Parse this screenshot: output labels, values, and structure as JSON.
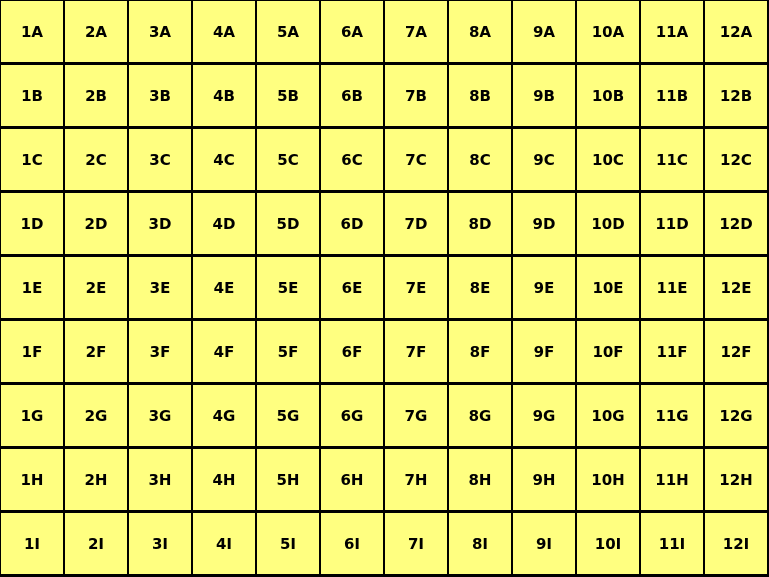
{
  "grid": {
    "columns": [
      "1",
      "2",
      "3",
      "4",
      "5",
      "6",
      "7",
      "8",
      "9",
      "10",
      "11",
      "12"
    ],
    "rows": [
      "A",
      "B",
      "C",
      "D",
      "E",
      "F",
      "G",
      "H",
      "I"
    ],
    "cell_color": "#FFFF80",
    "line_color": "#000000"
  }
}
